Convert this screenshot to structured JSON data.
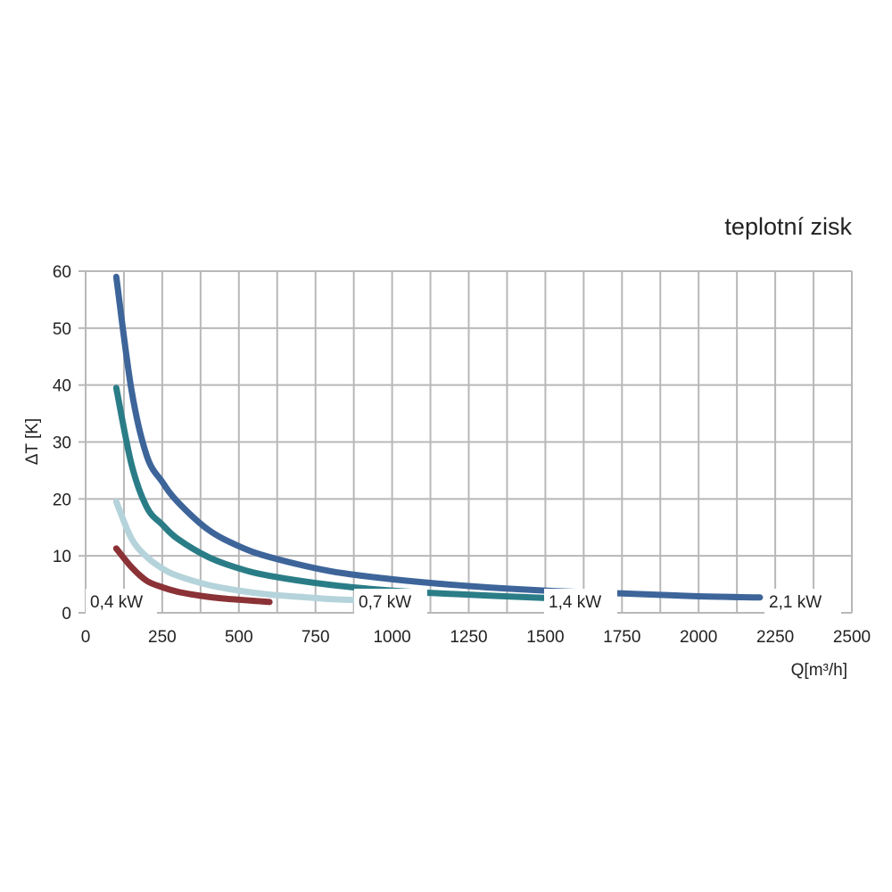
{
  "chart_data": {
    "type": "line",
    "title": "teplotní zisk",
    "xlabel": "Q[m³/h]",
    "ylabel": "ΔT [K]",
    "xlim": [
      0,
      2500
    ],
    "ylim": [
      0,
      60
    ],
    "xticks": [
      0,
      250,
      500,
      750,
      1000,
      1250,
      1500,
      1750,
      2000,
      2250,
      2500
    ],
    "yticks": [
      0,
      10,
      20,
      30,
      40,
      50,
      60
    ],
    "x_tick_labels": [
      "0",
      "250",
      "500",
      "750",
      "1000",
      "1250",
      "1500",
      "1750",
      "2000",
      "2250",
      "2500"
    ],
    "y_tick_labels": [
      "0",
      "10",
      "20",
      "30",
      "40",
      "50",
      "60"
    ],
    "grid": true,
    "series": [
      {
        "name": "0,4 kW",
        "color": "#8b3236",
        "x": [
          100,
          150,
          200,
          250,
          300,
          350,
          400,
          450,
          500,
          550,
          600
        ],
        "y": [
          11.3,
          8.0,
          5.6,
          4.5,
          3.7,
          3.2,
          2.8,
          2.5,
          2.3,
          2.1,
          1.9
        ]
      },
      {
        "name": "0,7 kW",
        "color": "#b5d3da",
        "x": [
          100,
          150,
          200,
          250,
          300,
          400,
          500,
          600,
          700,
          800,
          900
        ],
        "y": [
          19.5,
          13.0,
          9.8,
          7.8,
          6.5,
          4.9,
          3.9,
          3.2,
          2.8,
          2.4,
          2.2
        ]
      },
      {
        "name": "1,4 kW",
        "color": "#2a7d87",
        "x": [
          100,
          150,
          200,
          250,
          300,
          400,
          500,
          600,
          800,
          1000,
          1200,
          1500
        ],
        "y": [
          39.5,
          26.0,
          18.5,
          15.5,
          13.0,
          9.8,
          7.8,
          6.5,
          4.9,
          3.9,
          3.3,
          2.6
        ]
      },
      {
        "name": "2,1 kW",
        "color": "#3d659a",
        "x": [
          100,
          150,
          200,
          250,
          300,
          400,
          500,
          600,
          800,
          1000,
          1250,
          1500,
          1750,
          2000,
          2200
        ],
        "y": [
          59.0,
          39.0,
          27.5,
          23.0,
          19.5,
          14.6,
          11.7,
          9.8,
          7.3,
          5.9,
          4.7,
          3.9,
          3.4,
          2.9,
          2.7
        ]
      }
    ]
  }
}
